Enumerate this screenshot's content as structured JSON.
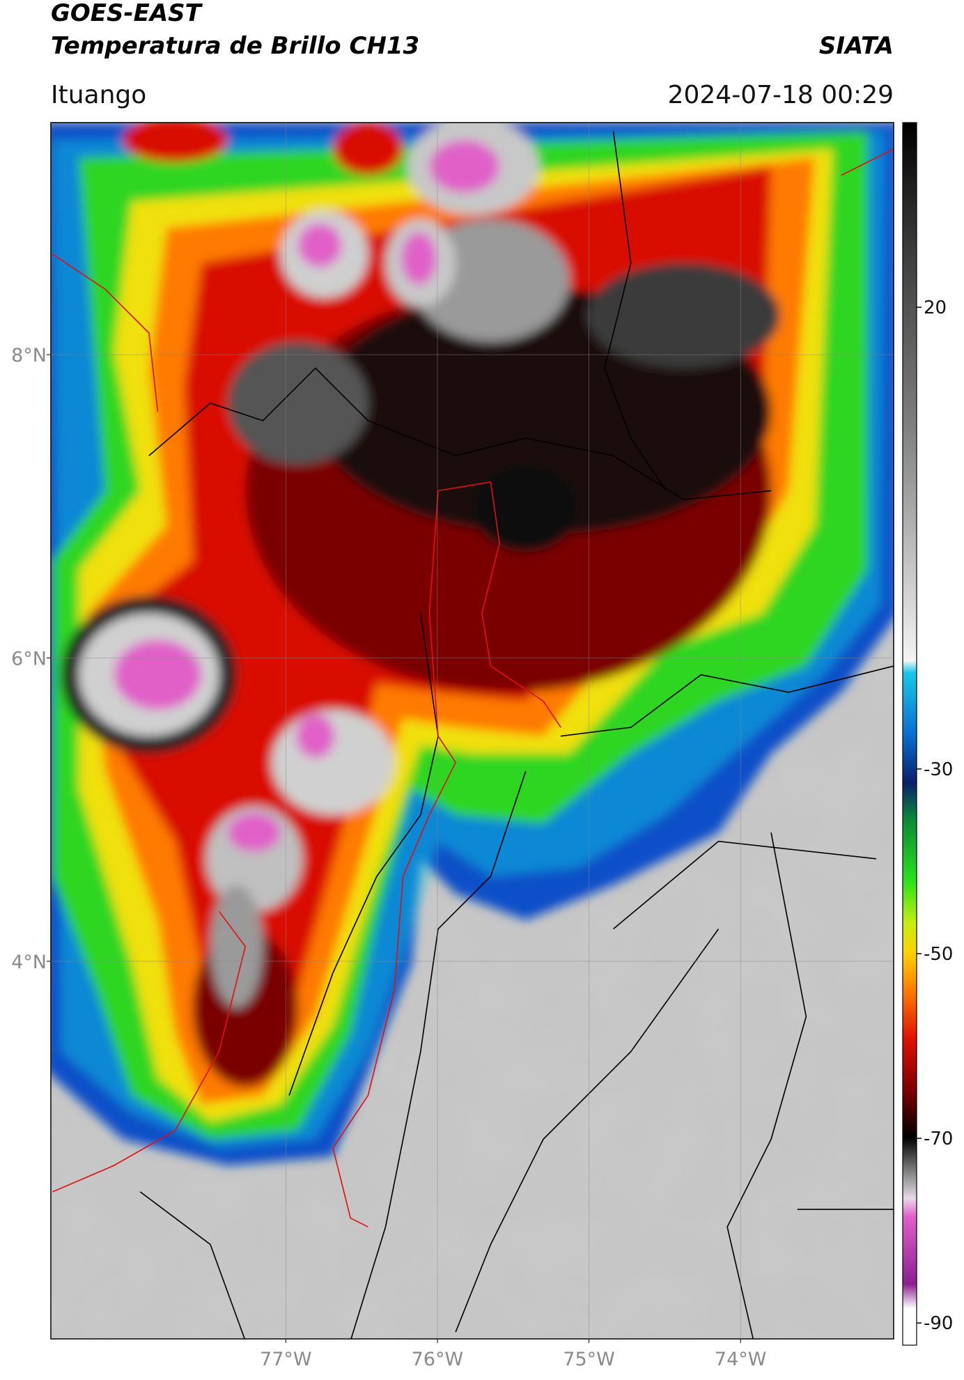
{
  "header": {
    "title": "GOES-EAST",
    "subtitle": "Temperatura de Brillo CH13",
    "agency": "SIATA",
    "location": "Ituango",
    "datetime": "2024-07-18 00:29"
  },
  "map": {
    "type": "map",
    "xlim": [
      -78.55,
      -72.99
    ],
    "ylim": [
      1.51,
      9.53
    ],
    "xticks": [
      {
        "value": -77,
        "label": "77°W"
      },
      {
        "value": -76,
        "label": "76°W"
      },
      {
        "value": -75,
        "label": "75°W"
      },
      {
        "value": -74,
        "label": "74°W"
      }
    ],
    "yticks": [
      {
        "value": 8,
        "label": "8°N"
      },
      {
        "value": 6,
        "label": "6°N"
      },
      {
        "value": 4,
        "label": "4°N"
      }
    ],
    "grid": true,
    "colorbar": {
      "lim": [
        -92.4,
        40
      ],
      "ticks": [
        20,
        -30,
        -50,
        -70,
        -90
      ]
    }
  }
}
